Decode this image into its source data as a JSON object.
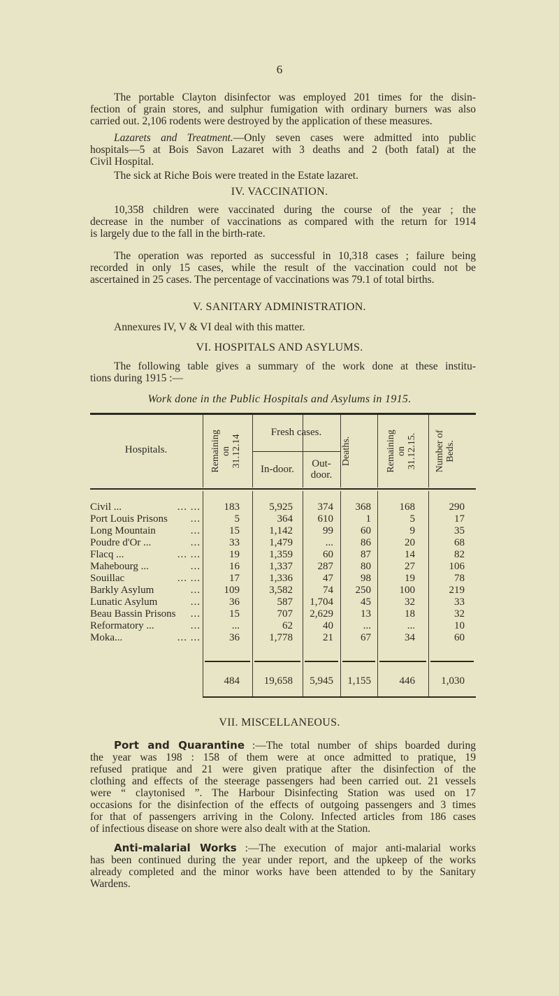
{
  "page_number": "6",
  "paragraphs_top": [
    {
      "lines": [
        "The portable Clayton disinfector was employed 201 times for the disin-",
        "fection of grain stores, and sulphur fumigation with ordinary burners was also",
        "carried out. 2,106 rodents were destroyed by the application of these measures."
      ]
    },
    {
      "italic_lead": "Lazarets and Treatment.",
      "lines": [
        "—Only seven cases were admitted into public",
        "hospitals—5 at Bois Savon Lazaret with 3 deaths and 2 (both fatal) at the",
        "Civil Hospital."
      ]
    },
    {
      "lines": [
        "The sick at Riche Bois were treated in the Estate lazaret."
      ]
    }
  ],
  "section_iv": {
    "heading": "IV. VACCINATION.",
    "paragraphs": [
      {
        "lines": [
          "10,358 children were vaccinated during the course of the year ; the",
          "decrease in the number of vaccinations as compared with the return for 1914",
          "is largely due to the fall in the birth-rate."
        ]
      },
      {
        "lines": [
          "The operation was reported as successful in 10,318 cases ; failure being",
          "recorded in only 15 cases, while the result of the vaccination could not be",
          "ascertained in 25 cases. The percentage of vaccinations was 79.1 of total births."
        ]
      }
    ]
  },
  "section_v": {
    "heading": "V. SANITARY ADMINISTRATION.",
    "text": "Annexures IV, V & VI deal with this matter."
  },
  "section_vi": {
    "heading": "VI. HOSPITALS AND ASYLUMS.",
    "lines": [
      "The following table gives a summary of the work done at these institu-",
      "tions during 1915 :—"
    ],
    "table_title": "Work done in the Public Hospitals and Asylums in 1915."
  },
  "table": {
    "headers": {
      "hospitals": "Hospitals.",
      "remaining_start": [
        "Remaining",
        "on",
        "31.12.14"
      ],
      "fresh_cases": "Fresh cases.",
      "indoor": "In-door.",
      "outdoor": [
        "Out-",
        "door."
      ],
      "deaths": "Deaths.",
      "remaining_end": [
        "Remaining",
        "on",
        "31.12.15."
      ],
      "beds": [
        "Number of",
        "Beds."
      ]
    },
    "rows": [
      {
        "name": "Civil ...",
        "lead": "... ...",
        "remaining_start": "183",
        "indoor": "5,925",
        "outdoor": "374",
        "deaths": "368",
        "remaining_end": "168",
        "beds": "290"
      },
      {
        "name": "Port Louis Prisons",
        "lead": "...",
        "remaining_start": "5",
        "indoor": "364",
        "outdoor": "610",
        "deaths": "1",
        "remaining_end": "5",
        "beds": "17"
      },
      {
        "name": "Long Mountain",
        "lead": "...",
        "remaining_start": "15",
        "indoor": "1,142",
        "outdoor": "99",
        "deaths": "60",
        "remaining_end": "9",
        "beds": "35"
      },
      {
        "name": "Poudre d'Or ...",
        "lead": "...",
        "remaining_start": "33",
        "indoor": "1,479",
        "outdoor": "...",
        "deaths": "86",
        "remaining_end": "20",
        "beds": "68"
      },
      {
        "name": "Flacq ...",
        "lead": "... ...",
        "remaining_start": "19",
        "indoor": "1,359",
        "outdoor": "60",
        "deaths": "87",
        "remaining_end": "14",
        "beds": "82"
      },
      {
        "name": "Mahebourg ...",
        "lead": "...",
        "remaining_start": "16",
        "indoor": "1,337",
        "outdoor": "287",
        "deaths": "80",
        "remaining_end": "27",
        "beds": "106"
      },
      {
        "name": "Souillac",
        "lead": "... ...",
        "remaining_start": "17",
        "indoor": "1,336",
        "outdoor": "47",
        "deaths": "98",
        "remaining_end": "19",
        "beds": "78"
      },
      {
        "name": "Barkly Asylum",
        "lead": "...",
        "remaining_start": "109",
        "indoor": "3,582",
        "outdoor": "74",
        "deaths": "250",
        "remaining_end": "100",
        "beds": "219"
      },
      {
        "name": "Lunatic Asylum",
        "lead": "...",
        "remaining_start": "36",
        "indoor": "587",
        "outdoor": "1,704",
        "deaths": "45",
        "remaining_end": "32",
        "beds": "33"
      },
      {
        "name": "Beau Bassin Prisons",
        "lead": "...",
        "remaining_start": "15",
        "indoor": "707",
        "outdoor": "2,629",
        "deaths": "13",
        "remaining_end": "18",
        "beds": "32"
      },
      {
        "name": "Reformatory ...",
        "lead": "...",
        "remaining_start": "...",
        "indoor": "62",
        "outdoor": "40",
        "deaths": "...",
        "remaining_end": "...",
        "beds": "10"
      },
      {
        "name": "Moka...",
        "lead": "... ...",
        "remaining_start": "36",
        "indoor": "1,778",
        "outdoor": "21",
        "deaths": "67",
        "remaining_end": "34",
        "beds": "60"
      }
    ],
    "totals": {
      "remaining_start": "484",
      "indoor": "19,658",
      "outdoor": "5,945",
      "deaths": "1,155",
      "remaining_end": "446",
      "beds": "1,030"
    }
  },
  "section_vii": {
    "heading": "VII. MISCELLANEOUS.",
    "port": {
      "bold_lead": "Port and Quarantine",
      "lines": [
        " :—The total number of ships boarded during",
        "the year was 198 : 158 of them were at once admitted to pratique, 19",
        "refused pratique and 21 were given pratique after the disinfection of the",
        "clothing and effects of the steerage passengers had been carried out. 21 vessels",
        "were “ claytonised ”. The Harbour Disinfecting Station was used on 17",
        "occasions for the disinfection of the effects of outgoing passengers and 3 times",
        "for that of passengers arriving in the Colony. Infected articles from 186 cases",
        "of infectious disease on shore were also dealt with at the Station."
      ]
    },
    "malaria": {
      "bold_lead": "Anti-malarial Works",
      "lines": [
        " :—The execution of major anti-malarial works",
        "has been continued during the year under report, and the upkeep of the works",
        "already completed and the minor works have been attended to by the Sanitary",
        "Wardens."
      ]
    }
  }
}
